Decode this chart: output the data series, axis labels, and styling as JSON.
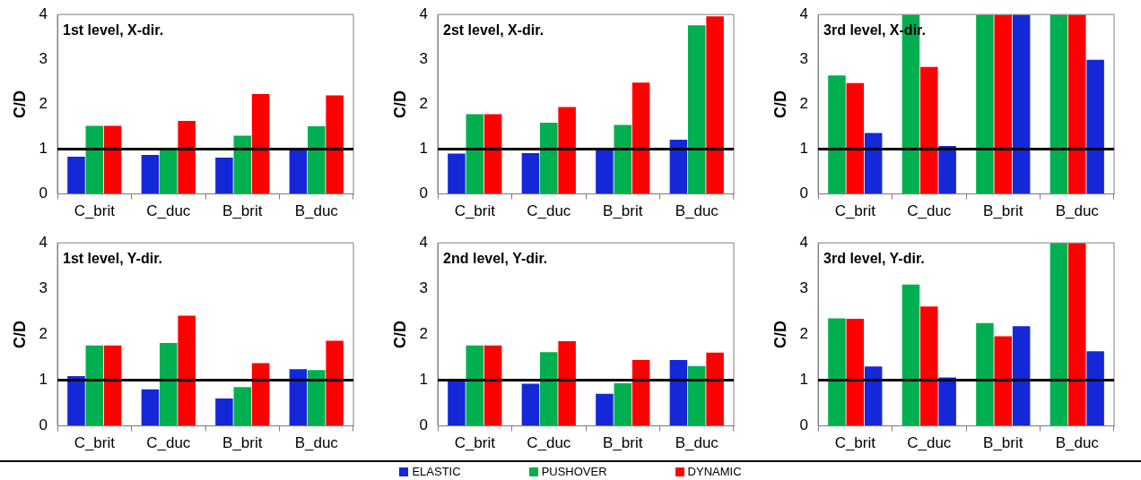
{
  "chart_data": [
    {
      "type": "bar",
      "title": "1st level, X-dir.",
      "ylabel": "C/D",
      "categories": [
        "C_brit",
        "C_duc",
        "B_brit",
        "B_duc"
      ],
      "ylim": [
        0,
        4
      ],
      "yticks": [
        0,
        1,
        2,
        3,
        4
      ],
      "ref_lines": [
        {
          "axis": "y",
          "value": 1,
          "color": "#000000"
        }
      ],
      "series": [
        {
          "color": "#1428d8",
          "values": [
            0.83,
            0.87,
            0.81,
            1.0
          ]
        },
        {
          "color": "#00b050",
          "values": [
            1.52,
            1.0,
            1.3,
            1.51
          ]
        },
        {
          "color": "#ff0000",
          "values": [
            1.52,
            1.63,
            2.23,
            2.2
          ]
        }
      ]
    },
    {
      "type": "bar",
      "title": "2st level, X-dir.",
      "ylabel": "C/D",
      "categories": [
        "C_brit",
        "C_duc",
        "B_brit",
        "B_duc"
      ],
      "ylim": [
        0,
        4
      ],
      "yticks": [
        0,
        1,
        2,
        3,
        4
      ],
      "ref_lines": [
        {
          "axis": "y",
          "value": 1,
          "color": "#000000"
        }
      ],
      "series": [
        {
          "color": "#1428d8",
          "values": [
            0.9,
            0.91,
            0.97,
            1.21
          ]
        },
        {
          "color": "#00b050",
          "values": [
            1.78,
            1.59,
            1.54,
            3.76
          ]
        },
        {
          "color": "#ff0000",
          "values": [
            1.78,
            1.94,
            2.48,
            3.96
          ]
        }
      ]
    },
    {
      "type": "bar",
      "title": "3rd level, X-dir.",
      "ylabel": "C/D",
      "categories": [
        "C_brit",
        "C_duc",
        "B_brit",
        "B_duc"
      ],
      "ylim": [
        0,
        4
      ],
      "yticks": [
        0,
        1,
        2,
        3,
        4
      ],
      "ref_lines": [
        {
          "axis": "y",
          "value": 1,
          "color": "#000000"
        }
      ],
      "series": [
        {
          "color": "#00b050",
          "values": [
            2.64,
            4,
            4,
            4
          ]
        },
        {
          "color": "#ff0000",
          "values": [
            2.47,
            2.83,
            4,
            4
          ]
        },
        {
          "color": "#1428d8",
          "values": [
            1.36,
            1.07,
            4,
            2.99
          ]
        }
      ]
    },
    {
      "type": "bar",
      "title": "1st level, Y-dir.",
      "ylabel": "C/D",
      "categories": [
        "C_brit",
        "C_duc",
        "B_brit",
        "B_duc"
      ],
      "ylim": [
        0,
        4
      ],
      "yticks": [
        0,
        1,
        2,
        3,
        4
      ],
      "ref_lines": [
        {
          "axis": "y",
          "value": 1,
          "color": "#000000"
        }
      ],
      "series": [
        {
          "color": "#1428d8",
          "values": [
            1.09,
            0.8,
            0.6,
            1.24
          ]
        },
        {
          "color": "#00b050",
          "values": [
            1.76,
            1.81,
            0.85,
            1.22
          ]
        },
        {
          "color": "#ff0000",
          "values": [
            1.76,
            2.41,
            1.37,
            1.86
          ]
        }
      ]
    },
    {
      "type": "bar",
      "title": "2nd level, Y-dir.",
      "ylabel": "C/D",
      "categories": [
        "C_brit",
        "C_duc",
        "B_brit",
        "B_duc"
      ],
      "ylim": [
        0,
        4
      ],
      "yticks": [
        0,
        1,
        2,
        3,
        4
      ],
      "ref_lines": [
        {
          "axis": "y",
          "value": 1,
          "color": "#000000"
        }
      ],
      "legend": "bottom",
      "series": [
        {
          "name": "ELASTIC",
          "color": "#1428d8",
          "values": [
            0.98,
            0.92,
            0.7,
            1.44
          ]
        },
        {
          "name": "PUSHOVER",
          "color": "#00b050",
          "values": [
            1.76,
            1.61,
            0.93,
            1.31
          ]
        },
        {
          "name": "DYNAMIC",
          "color": "#ff0000",
          "values": [
            1.76,
            1.85,
            1.44,
            1.6
          ]
        }
      ]
    },
    {
      "type": "bar",
      "title": "3rd level, Y-dir.",
      "ylabel": "C/D",
      "categories": [
        "C_brit",
        "C_duc",
        "B_brit",
        "B_duc"
      ],
      "ylim": [
        0,
        4
      ],
      "yticks": [
        0,
        1,
        2,
        3,
        4
      ],
      "ref_lines": [
        {
          "axis": "y",
          "value": 1,
          "color": "#000000"
        }
      ],
      "series": [
        {
          "color": "#00b050",
          "values": [
            2.35,
            3.09,
            2.25,
            4
          ]
        },
        {
          "color": "#ff0000",
          "values": [
            2.34,
            2.61,
            1.96,
            4
          ]
        },
        {
          "color": "#1428d8",
          "values": [
            1.3,
            1.06,
            2.18,
            1.63
          ]
        }
      ]
    }
  ]
}
